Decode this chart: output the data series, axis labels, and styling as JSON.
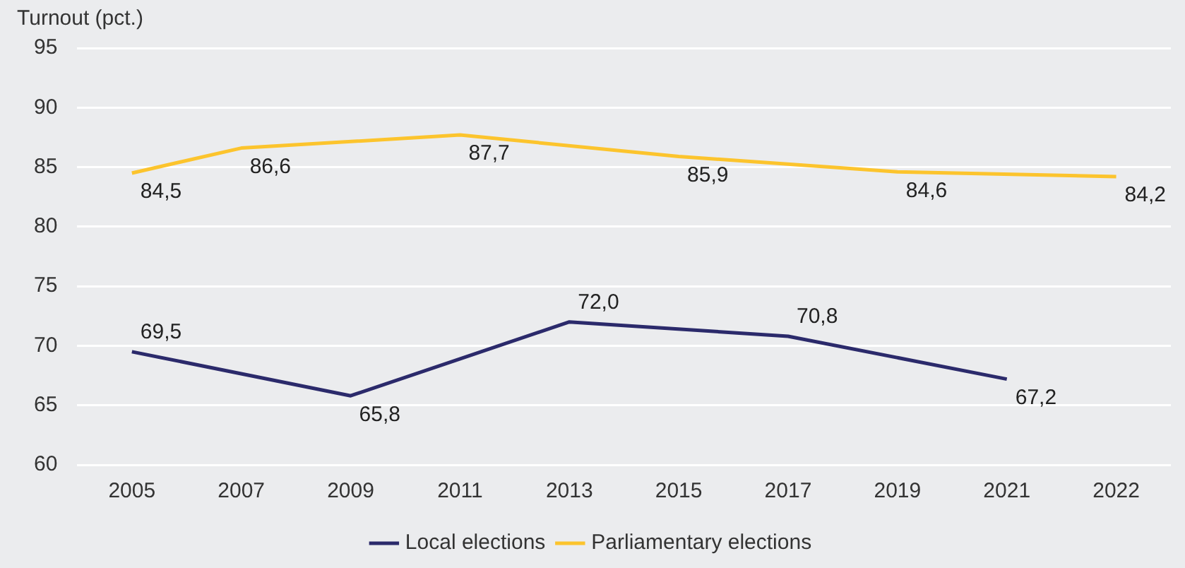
{
  "chart_data": {
    "type": "line",
    "ylabel": "Turnout (pct.)",
    "categories": [
      "2005",
      "2007",
      "2009",
      "2011",
      "2013",
      "2015",
      "2017",
      "2019",
      "2021",
      "2022"
    ],
    "series": [
      {
        "name": "Local elections",
        "color": "#2b2a6b",
        "values": [
          69.5,
          null,
          65.8,
          null,
          72.0,
          null,
          70.8,
          null,
          67.2,
          null
        ],
        "value_labels": [
          "69,5",
          null,
          "65,8",
          null,
          "72,0",
          null,
          "70,8",
          null,
          "67,2",
          null
        ]
      },
      {
        "name": "Parliamentary elections",
        "color": "#fcc42d",
        "values": [
          84.5,
          86.6,
          null,
          87.7,
          null,
          85.9,
          null,
          84.6,
          null,
          84.2
        ],
        "value_labels": [
          "84,5",
          "86,6",
          null,
          "87,7",
          null,
          "85,9",
          null,
          "84,6",
          null,
          "84,2"
        ]
      }
    ],
    "ylim": [
      60,
      95
    ],
    "yticks": [
      60,
      65,
      70,
      75,
      80,
      85,
      90,
      95
    ],
    "grid": "y",
    "legend": "bottom",
    "marker": "none",
    "line_style": "solid"
  }
}
